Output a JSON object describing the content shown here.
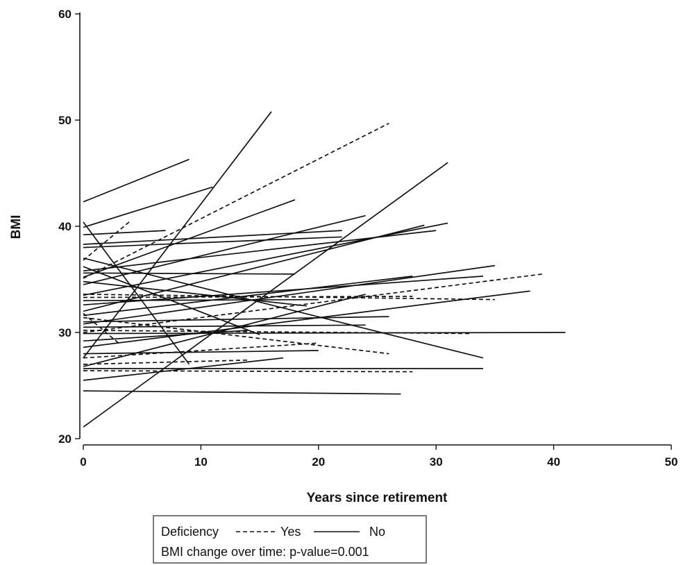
{
  "chart_data": {
    "type": "line",
    "title": "",
    "xlabel": "Years since retirement",
    "ylabel": "BMI",
    "xlim": [
      0,
      50
    ],
    "ylim": [
      20,
      60
    ],
    "xticks": [
      0,
      10,
      20,
      30,
      40,
      50
    ],
    "yticks": [
      20,
      30,
      40,
      50,
      60
    ],
    "grid": false,
    "legend": {
      "placement": "bottom-center",
      "title": "Deficiency",
      "yes_label": "Yes",
      "no_label": "No",
      "annotation": "BMI change over time: p-value=0.001"
    },
    "series": [
      {
        "group": "No",
        "points": [
          [
            0,
            42.3
          ],
          [
            9,
            46.3
          ]
        ]
      },
      {
        "group": "No",
        "points": [
          [
            0,
            39.9
          ],
          [
            11,
            43.7
          ]
        ]
      },
      {
        "group": "No",
        "points": [
          [
            0,
            27.6
          ],
          [
            16,
            50.8
          ]
        ]
      },
      {
        "group": "No",
        "points": [
          [
            0,
            21.1
          ],
          [
            31,
            46.0
          ]
        ]
      },
      {
        "group": "No",
        "points": [
          [
            0,
            35.2
          ],
          [
            18,
            42.5
          ]
        ]
      },
      {
        "group": "No",
        "points": [
          [
            0,
            40.4
          ],
          [
            9,
            27.0
          ]
        ]
      },
      {
        "group": "No",
        "points": [
          [
            0,
            39.2
          ],
          [
            7,
            39.6
          ]
        ]
      },
      {
        "group": "No",
        "points": [
          [
            0,
            38.3
          ],
          [
            22,
            39.6
          ]
        ]
      },
      {
        "group": "No",
        "points": [
          [
            0,
            38.0
          ],
          [
            22,
            39.0
          ]
        ]
      },
      {
        "group": "No",
        "points": [
          [
            0,
            34.5
          ],
          [
            24,
            41.0
          ]
        ]
      },
      {
        "group": "No",
        "points": [
          [
            0,
            33.5
          ],
          [
            31,
            40.3
          ]
        ]
      },
      {
        "group": "No",
        "points": [
          [
            0,
            35.8
          ],
          [
            30,
            39.6
          ]
        ]
      },
      {
        "group": "No",
        "points": [
          [
            0,
            32.0
          ],
          [
            29,
            40.1
          ]
        ]
      },
      {
        "group": "No",
        "points": [
          [
            0,
            37.0
          ],
          [
            34,
            27.6
          ]
        ]
      },
      {
        "group": "No",
        "points": [
          [
            0,
            35.6
          ],
          [
            18,
            35.5
          ]
        ]
      },
      {
        "group": "No",
        "points": [
          [
            0,
            30.8
          ],
          [
            35,
            36.3
          ]
        ]
      },
      {
        "group": "No",
        "points": [
          [
            0,
            32.6
          ],
          [
            34,
            35.3
          ]
        ]
      },
      {
        "group": "No",
        "points": [
          [
            0,
            28.6
          ],
          [
            38,
            33.9
          ]
        ]
      },
      {
        "group": "No",
        "points": [
          [
            0,
            29.9
          ],
          [
            41,
            30.0
          ]
        ]
      },
      {
        "group": "No",
        "points": [
          [
            0,
            31.6
          ],
          [
            28,
            35.3
          ]
        ]
      },
      {
        "group": "No",
        "points": [
          [
            0,
            26.8
          ],
          [
            24,
            33.6
          ]
        ]
      },
      {
        "group": "No",
        "points": [
          [
            0,
            33.0
          ],
          [
            20,
            33.1
          ]
        ]
      },
      {
        "group": "No",
        "points": [
          [
            0,
            34.8
          ],
          [
            19,
            32.5
          ]
        ]
      },
      {
        "group": "No",
        "points": [
          [
            0,
            31.0
          ],
          [
            26,
            31.5
          ]
        ]
      },
      {
        "group": "No",
        "points": [
          [
            0,
            30.5
          ],
          [
            24,
            30.7
          ]
        ]
      },
      {
        "group": "No",
        "points": [
          [
            0,
            28.0
          ],
          [
            20,
            28.3
          ]
        ]
      },
      {
        "group": "No",
        "points": [
          [
            0,
            26.6
          ],
          [
            34,
            26.6
          ]
        ]
      },
      {
        "group": "No",
        "points": [
          [
            0,
            25.5
          ],
          [
            17,
            27.6
          ]
        ]
      },
      {
        "group": "No",
        "points": [
          [
            0,
            24.5
          ],
          [
            27,
            24.2
          ]
        ]
      },
      {
        "group": "No",
        "points": [
          [
            0,
            29.2
          ],
          [
            14,
            30.2
          ]
        ]
      },
      {
        "group": "No",
        "points": [
          [
            0,
            36.2
          ],
          [
            15,
            29.8
          ]
        ]
      },
      {
        "group": "Yes",
        "points": [
          [
            0,
            35.1
          ],
          [
            26,
            49.7
          ]
        ]
      },
      {
        "group": "Yes",
        "points": [
          [
            0,
            36.8
          ],
          [
            4,
            40.5
          ]
        ]
      },
      {
        "group": "Yes",
        "points": [
          [
            0,
            30.0
          ],
          [
            39,
            35.5
          ]
        ]
      },
      {
        "group": "Yes",
        "points": [
          [
            0,
            33.6
          ],
          [
            35,
            33.1
          ]
        ]
      },
      {
        "group": "Yes",
        "points": [
          [
            0,
            33.3
          ],
          [
            28,
            33.4
          ]
        ]
      },
      {
        "group": "Yes",
        "points": [
          [
            0,
            31.4
          ],
          [
            26,
            28.0
          ]
        ]
      },
      {
        "group": "Yes",
        "points": [
          [
            0,
            30.2
          ],
          [
            33,
            29.9
          ]
        ]
      },
      {
        "group": "Yes",
        "points": [
          [
            0,
            27.6
          ],
          [
            20,
            29.0
          ]
        ]
      },
      {
        "group": "Yes",
        "points": [
          [
            0,
            26.4
          ],
          [
            28,
            26.3
          ]
        ]
      },
      {
        "group": "Yes",
        "points": [
          [
            0,
            27.0
          ],
          [
            14,
            27.4
          ]
        ]
      },
      {
        "group": "Yes",
        "points": [
          [
            0,
            31.8
          ],
          [
            3,
            29.0
          ]
        ]
      }
    ]
  }
}
